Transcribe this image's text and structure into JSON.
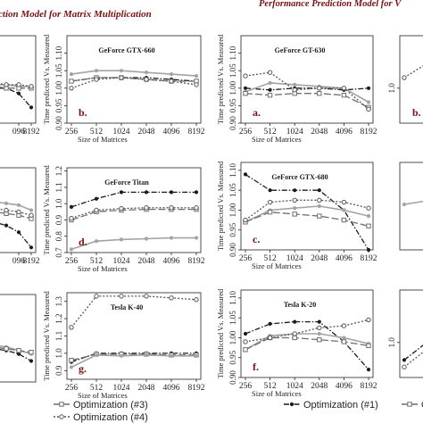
{
  "figure": {
    "title_left": "ction Model for Matrix Multiplication",
    "title_right": "Performance Prediction Model for V"
  },
  "legend": {
    "items": [
      {
        "label": "Optimization (#1)",
        "style": "black-dashdot"
      },
      {
        "label": "Optimization (#2)",
        "style": "grey-solid"
      },
      {
        "label": "Optimization (#3)",
        "style": "grey-longdash"
      },
      {
        "label": "Optimization (#4)",
        "style": "grey-dotted"
      }
    ]
  },
  "styles": {
    "black-dashdot": {
      "color": "#1a1a1a",
      "dash": "6,2,1.5,2",
      "marker": "circle-filled"
    },
    "grey-solid": {
      "color": "#a3a3a3",
      "dash": "",
      "marker": "circle-filled"
    },
    "grey-longdash": {
      "color": "#6e6e6e",
      "dash": "8,3",
      "marker": "square-open"
    },
    "grey-dotted": {
      "color": "#555555",
      "dash": "2,2",
      "marker": "circle-open"
    }
  },
  "chart_data": [
    {
      "id": "ml1",
      "type": "line",
      "title": "",
      "label": "",
      "x_ticks": [
        "096",
        "8192"
      ],
      "xlabel": "",
      "ylabel": "",
      "y_ticks": [],
      "ylim": [
        0.9,
        1.15
      ],
      "series": [
        {
          "style": "black-dashdot",
          "values": [
            1.0,
            1.0,
            1.0,
            1.0,
            0.985,
            0.945
          ]
        },
        {
          "style": "grey-solid",
          "values": [
            1.01,
            1.01,
            1.01,
            1.01,
            1.005,
            1.005
          ]
        },
        {
          "style": "grey-longdash",
          "values": [
            1.005,
            1.005,
            1.005,
            1.0,
            1.0,
            1.0
          ]
        },
        {
          "style": "grey-dotted",
          "values": [
            1.015,
            1.015,
            1.015,
            1.01,
            1.01,
            1.005
          ]
        }
      ]
    },
    {
      "id": "b_left",
      "type": "line",
      "title": "GeForce GTX-660",
      "label": "b.",
      "x_ticks": [
        "256",
        "512",
        "1024",
        "2048",
        "4096",
        "8192"
      ],
      "xlabel": "Size of Matrices",
      "ylabel": "Time predicted Vs. Measured",
      "y_ticks": [
        "0.90",
        "0.95",
        "1.00",
        "1.05",
        "1.10"
      ],
      "ylim": [
        0.9,
        1.15
      ],
      "series": [
        {
          "style": "black-dashdot",
          "values": [
            1.02,
            1.03,
            1.03,
            1.03,
            1.025,
            1.02
          ]
        },
        {
          "style": "grey-solid",
          "values": [
            1.04,
            1.05,
            1.05,
            1.045,
            1.04,
            1.035
          ]
        },
        {
          "style": "grey-longdash",
          "values": [
            1.02,
            1.03,
            1.03,
            1.025,
            1.02,
            1.02
          ]
        },
        {
          "style": "grey-dotted",
          "values": [
            1.0,
            1.025,
            1.03,
            1.025,
            1.02,
            1.01
          ]
        }
      ]
    },
    {
      "id": "a_right",
      "type": "line",
      "title": "GeForce GT-630",
      "label": "a.",
      "x_ticks": [
        "256",
        "512",
        "1024",
        "2048",
        "4096",
        "8192"
      ],
      "xlabel": "Size of Matrices",
      "ylabel": "Time predicted Vs. Measured",
      "y_ticks": [
        "0.90",
        "0.95",
        "1.00",
        "1.05",
        "1.10"
      ],
      "ylim": [
        0.9,
        1.15
      ],
      "series": [
        {
          "style": "black-dashdot",
          "values": [
            1.0,
            0.995,
            1.0,
            1.0,
            0.995,
            1.0
          ]
        },
        {
          "style": "grey-solid",
          "values": [
            0.99,
            1.015,
            1.01,
            1.005,
            1.0,
            0.96
          ]
        },
        {
          "style": "grey-longdash",
          "values": [
            0.985,
            0.98,
            0.985,
            0.985,
            0.98,
            0.945
          ]
        },
        {
          "style": "grey-dotted",
          "values": [
            1.035,
            1.045,
            0.995,
            1.0,
            1.0,
            0.94
          ]
        }
      ]
    },
    {
      "id": "mr1",
      "type": "line",
      "title": "",
      "label": "b.",
      "x_ticks": [],
      "xlabel": "",
      "ylabel": "",
      "y_ticks": [
        "1.0"
      ],
      "ylim": [
        0.9,
        1.15
      ],
      "series": [
        {
          "style": "grey-dotted",
          "values": [
            1.03,
            1.07,
            1.09
          ]
        }
      ]
    },
    {
      "id": "ml2",
      "type": "line",
      "title": "",
      "label": "",
      "x_ticks": [
        "096",
        "8192"
      ],
      "xlabel": "",
      "ylabel": "",
      "y_ticks": [],
      "ylim": [
        0.9,
        1.15
      ],
      "series": [
        {
          "style": "black-dashdot",
          "values": [
            1.0,
            0.99,
            0.99,
            0.98,
            0.96,
            0.915
          ]
        },
        {
          "style": "grey-solid",
          "values": [
            1.06,
            1.055,
            1.05,
            1.045,
            1.04,
            1.025
          ]
        },
        {
          "style": "grey-longdash",
          "values": [
            1.03,
            1.025,
            1.02,
            1.015,
            1.01,
            1.0
          ]
        },
        {
          "style": "grey-dotted",
          "values": [
            1.04,
            1.035,
            1.03,
            1.025,
            1.02,
            1.01
          ]
        }
      ]
    },
    {
      "id": "d_left",
      "type": "line",
      "title": "GeForce Titan",
      "label": "d.",
      "x_ticks": [
        "256",
        "512",
        "1024",
        "2048",
        "4096",
        "8192"
      ],
      "xlabel": "Size of Matrices",
      "ylabel": "Time predicted Vs. Measured",
      "y_ticks": [
        "0.7",
        "0.8",
        "0.9",
        "1.0",
        "1.1",
        "1.2"
      ],
      "ylim": [
        0.7,
        1.22
      ],
      "series": [
        {
          "style": "black-dashdot",
          "values": [
            0.98,
            1.03,
            1.07,
            1.07,
            1.07,
            1.07
          ]
        },
        {
          "style": "grey-solid",
          "values": [
            0.72,
            0.77,
            0.78,
            0.785,
            0.79,
            0.79
          ]
        },
        {
          "style": "grey-longdash",
          "values": [
            0.9,
            0.95,
            0.96,
            0.965,
            0.965,
            0.965
          ]
        },
        {
          "style": "grey-dotted",
          "values": [
            0.91,
            0.96,
            0.97,
            0.975,
            0.975,
            0.975
          ]
        }
      ]
    },
    {
      "id": "c_right",
      "type": "line",
      "title": "GeForce GTX-680",
      "label": "c.",
      "x_ticks": [
        "256",
        "512",
        "1024",
        "2048",
        "4096",
        "8192"
      ],
      "xlabel": "Size of Matrices",
      "ylabel": "Time predicted Vs. Measured",
      "y_ticks": [
        "0.90",
        "0.95",
        "1.00",
        "1.05",
        "1.10"
      ],
      "ylim": [
        0.9,
        1.12
      ],
      "series": [
        {
          "style": "black-dashdot",
          "values": [
            1.09,
            1.05,
            1.05,
            1.05,
            1.0,
            0.9
          ]
        },
        {
          "style": "grey-solid",
          "values": [
            0.97,
            1.0,
            1.005,
            1.01,
            1.0,
            0.985
          ]
        },
        {
          "style": "grey-longdash",
          "values": [
            0.97,
            0.995,
            0.99,
            0.985,
            0.975,
            0.96
          ]
        },
        {
          "style": "grey-dotted",
          "values": [
            0.975,
            1.02,
            1.025,
            1.025,
            1.02,
            1.005
          ]
        }
      ]
    },
    {
      "id": "mr2",
      "type": "line",
      "title": "",
      "label": "",
      "x_ticks": [],
      "xlabel": "",
      "ylabel": "",
      "y_ticks": [],
      "ylim": [
        0.9,
        1.15
      ],
      "series": [
        {
          "style": "grey-solid",
          "values": [
            1.03,
            1.04,
            1.05
          ]
        }
      ]
    },
    {
      "id": "ml3",
      "type": "line",
      "title": "",
      "label": "",
      "x_ticks": [],
      "xlabel": "",
      "ylabel": "",
      "y_ticks": [],
      "ylim": [
        0.9,
        1.15
      ],
      "series": [
        {
          "style": "black-dashdot",
          "values": [
            1.0,
            1.0,
            0.995,
            0.99,
            0.98,
            0.96
          ]
        },
        {
          "style": "grey-solid",
          "values": [
            1.01,
            1.01,
            1.005,
            1.0,
            0.99,
            0.98
          ]
        },
        {
          "style": "grey-longdash",
          "values": [
            1.005,
            1.005,
            1.0,
            0.995,
            0.99,
            0.985
          ]
        }
      ]
    },
    {
      "id": "g_left",
      "type": "line",
      "title": "Tesla K-40",
      "label": "g.",
      "x_ticks": [
        "256",
        "512",
        "1024",
        "2048",
        "4096",
        "8192"
      ],
      "xlabel": "Size of Matrices",
      "ylabel": "Time predicted Vs. Measured",
      "y_ticks": [
        "0.9",
        "1.0",
        "1.1",
        "1.2",
        "1.3"
      ],
      "ylim": [
        0.85,
        1.35
      ],
      "series": [
        {
          "style": "grey-dotted",
          "values": [
            1.15,
            1.33,
            1.33,
            1.33,
            1.32,
            1.31
          ]
        },
        {
          "style": "black-dashdot",
          "values": [
            0.95,
            1.0,
            1.0,
            1.0,
            1.0,
            1.0
          ]
        },
        {
          "style": "grey-longdash",
          "values": [
            0.96,
            0.995,
            0.995,
            0.995,
            0.99,
            0.99
          ]
        },
        {
          "style": "grey-solid",
          "values": [
            0.92,
            0.99,
            0.985,
            0.99,
            0.985,
            0.985
          ]
        }
      ]
    },
    {
      "id": "f_right",
      "type": "line",
      "title": "Tesla K-20",
      "label": "f.",
      "x_ticks": [
        "256",
        "512",
        "1024",
        "2048",
        "4096",
        "8192"
      ],
      "xlabel": "Size of Matrices",
      "ylabel": "Time predicted Vs. Measured",
      "y_ticks": [
        "0.90",
        "0.95",
        "1.00",
        "1.05",
        "1.10"
      ],
      "ylim": [
        0.9,
        1.12
      ],
      "series": [
        {
          "style": "black-dashdot",
          "values": [
            1.01,
            1.035,
            1.04,
            1.04,
            0.99,
            0.92
          ]
        },
        {
          "style": "grey-solid",
          "values": [
            0.97,
            1.005,
            1.01,
            1.01,
            1.0,
            0.985
          ]
        },
        {
          "style": "grey-longdash",
          "values": [
            0.97,
            1.0,
            1.0,
            0.995,
            0.99,
            0.98
          ]
        },
        {
          "style": "grey-dotted",
          "values": [
            0.99,
            1.0,
            1.01,
            1.025,
            1.03,
            1.045
          ]
        }
      ]
    },
    {
      "id": "mr3",
      "type": "line",
      "title": "",
      "label": "",
      "x_ticks": [],
      "xlabel": "",
      "ylabel": "",
      "y_ticks": [
        "1.0"
      ],
      "ylim": [
        0.9,
        1.15
      ],
      "series": [
        {
          "style": "black-dashdot",
          "values": [
            0.95,
            1.0,
            1.05
          ]
        },
        {
          "style": "grey-dotted",
          "values": [
            0.93,
            0.98,
            1.04
          ]
        }
      ]
    }
  ]
}
